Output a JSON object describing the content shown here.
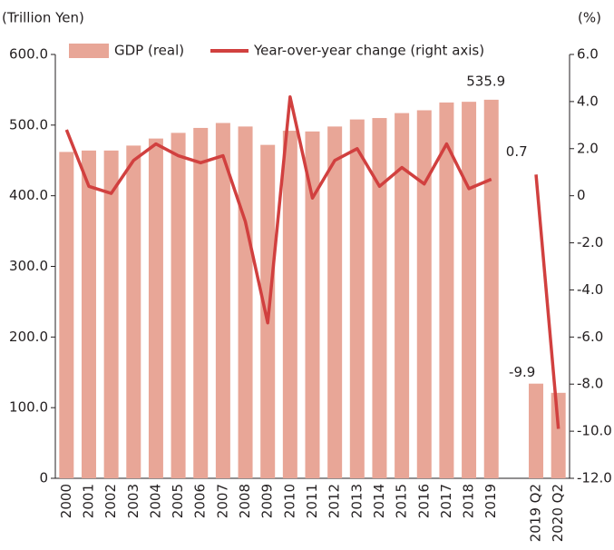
{
  "chart_data": {
    "type": "bar_line",
    "y_label": "(Trillion Yen)",
    "y2_label": "(%)",
    "categories": [
      "2000",
      "2001",
      "2002",
      "2003",
      "2004",
      "2005",
      "2006",
      "2007",
      "2008",
      "2009",
      "2010",
      "2011",
      "2012",
      "2013",
      "2014",
      "2015",
      "2016",
      "2017",
      "2018",
      "2019",
      null,
      "2019 Q2",
      "2020 Q2"
    ],
    "series": [
      {
        "name": "GDP (real)",
        "type": "bar",
        "color": "#e8a697",
        "axis": "y",
        "values": [
          462,
          464,
          464,
          471,
          481,
          489,
          496,
          503,
          498,
          472,
          492,
          491,
          498,
          508,
          510,
          517,
          521,
          532,
          533,
          535.9,
          null,
          134,
          121
        ],
        "value_labels": [
          null,
          null,
          null,
          null,
          null,
          null,
          null,
          null,
          null,
          null,
          null,
          null,
          null,
          null,
          null,
          null,
          null,
          null,
          null,
          "535.9",
          null,
          null,
          null
        ]
      },
      {
        "name": "Year-over-year change (right axis)",
        "type": "line",
        "color": "#d1403f",
        "axis": "y2",
        "values": [
          2.8,
          0.4,
          0.1,
          1.5,
          2.2,
          1.7,
          1.4,
          1.7,
          -1.1,
          -5.4,
          4.2,
          -0.1,
          1.5,
          2.0,
          0.4,
          1.2,
          0.5,
          2.2,
          0.3,
          0.7,
          null,
          0.9,
          -9.9
        ],
        "value_labels": [
          null,
          null,
          null,
          null,
          null,
          null,
          null,
          null,
          null,
          null,
          null,
          null,
          null,
          null,
          null,
          null,
          null,
          null,
          null,
          "0.7",
          null,
          null,
          "-9.9"
        ]
      }
    ],
    "ylim": [
      0,
      600
    ],
    "yticks": [
      0,
      {
        "value": 100,
        "label": "100.0"
      },
      {
        "value": 200,
        "label": "200.0"
      },
      {
        "value": 300,
        "label": "300.0"
      },
      {
        "value": 400,
        "label": "400.0"
      },
      {
        "value": 500,
        "label": "500.0"
      },
      {
        "value": 600,
        "label": "600.0"
      }
    ],
    "y2lim": [
      -12,
      6
    ],
    "y2ticks": [
      {
        "value": -12,
        "label": "-12.0"
      },
      {
        "value": -10,
        "label": "-10.0"
      },
      {
        "value": -8,
        "label": "-8.0"
      },
      {
        "value": -6,
        "label": "-6.0"
      },
      {
        "value": -4,
        "label": "-4.0"
      },
      {
        "value": -2,
        "label": "-2.0"
      },
      0,
      {
        "value": 2,
        "label": "2.0"
      },
      {
        "value": 4,
        "label": "4.0"
      },
      {
        "value": 6,
        "label": "6.0"
      }
    ],
    "legend": "top"
  }
}
